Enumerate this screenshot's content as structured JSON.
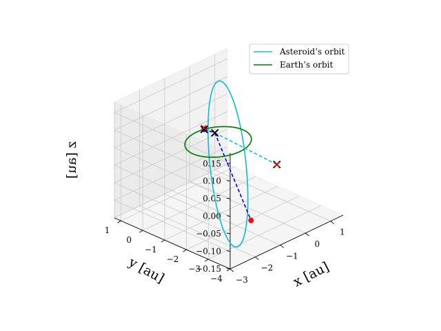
{
  "chart_data": {
    "type": "line",
    "projection": "3d",
    "title": "",
    "xlabel": "x [au]",
    "ylabel": "y [au]",
    "zlabel": "z [au]",
    "xlim": [
      -3,
      1.5
    ],
    "ylim": [
      -4,
      1.3
    ],
    "zlim": [
      -0.15,
      0.18
    ],
    "xticks": [
      -3,
      -2,
      -1,
      0,
      1
    ],
    "yticks": [
      1,
      0,
      -1,
      -2,
      -3,
      -4
    ],
    "zticks": [
      0.15,
      0.1,
      0.05,
      0.0,
      -0.05,
      -0.1,
      -0.15
    ],
    "xtick_labels": [
      "−3",
      "−2",
      "−1",
      "0",
      "1"
    ],
    "ytick_labels": [
      "1",
      "0",
      "−1",
      "−2",
      "−3",
      "−4"
    ],
    "ztick_labels": [
      "0.15",
      "0.10",
      "0.05",
      "0.00",
      "−0.05",
      "−0.10",
      "−0.15"
    ],
    "grid": true,
    "legend_position": "top-right",
    "series": [
      {
        "name": "Asteroid’s orbit",
        "color": "#17becf",
        "style": "solid",
        "kind": "ellipse",
        "center": [
          -1.0,
          -1.6,
          0.015
        ],
        "axis_a": [
          1.3,
          1.9,
          0.14
        ],
        "axis_b": [
          0.45,
          -0.3,
          0.0
        ]
      },
      {
        "name": "Earth’s orbit",
        "color": "#008000",
        "style": "solid",
        "kind": "ellipse",
        "center": [
          0,
          0,
          0
        ],
        "axis_a": [
          1,
          0,
          0
        ],
        "axis_b": [
          0,
          1,
          0
        ]
      }
    ],
    "segments": [
      {
        "from": [
          0.28,
          0.96,
          0.0
        ],
        "to": [
          0.33,
          0.53,
          0.0
        ],
        "color": "#0000ff",
        "style": "dashed"
      },
      {
        "from": [
          0.33,
          0.53,
          0.0
        ],
        "to": [
          -0.95,
          -2.6,
          -0.12
        ],
        "color": "#0000ff",
        "style": "dashed"
      },
      {
        "from": [
          0.33,
          0.53,
          0.0
        ],
        "to": [
          0.6,
          -2.0,
          -0.03
        ],
        "color": "#17becf",
        "style": "dashed"
      }
    ],
    "points": [
      {
        "kind": "dot",
        "xyz": [
          0.28,
          0.96,
          0.0
        ],
        "color": "#0000ff"
      },
      {
        "kind": "dot",
        "xyz": [
          -0.95,
          -2.6,
          -0.12
        ],
        "color": "#ff0000"
      },
      {
        "kind": "x",
        "xyz": [
          0.28,
          0.96,
          0.0
        ],
        "color": "#000000"
      },
      {
        "kind": "x",
        "xyz": [
          0.33,
          0.53,
          0.0
        ],
        "color": "#000000"
      },
      {
        "kind": "x",
        "xyz": [
          0.6,
          -2.0,
          -0.03
        ],
        "color": "#000000"
      },
      {
        "kind": "x-small",
        "xyz": [
          0.3,
          1.0,
          0.003
        ],
        "color": "#ff0000"
      },
      {
        "kind": "x-small",
        "xyz": [
          0.6,
          -2.0,
          -0.03
        ],
        "color": "#ff0000"
      }
    ]
  }
}
